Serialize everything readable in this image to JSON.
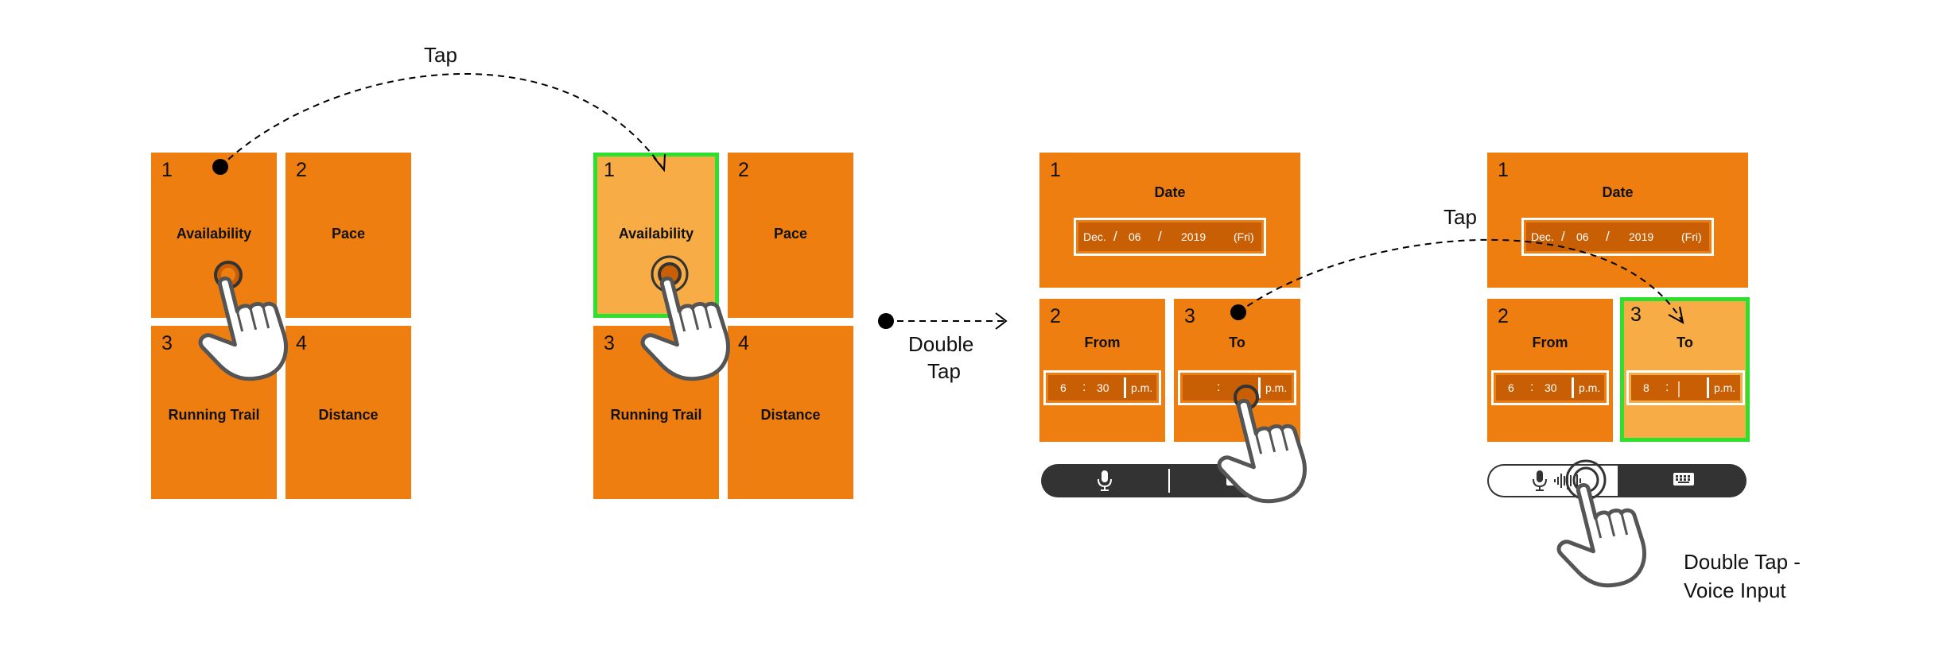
{
  "panel1": {
    "tiles": [
      {
        "num": "1",
        "label": "Availability"
      },
      {
        "num": "2",
        "label": "Pace"
      },
      {
        "num": "3",
        "label": "Running Trail"
      },
      {
        "num": "4",
        "label": "Distance"
      }
    ]
  },
  "panel2": {
    "tiles": [
      {
        "num": "1",
        "label": "Availability"
      },
      {
        "num": "2",
        "label": "Pace"
      },
      {
        "num": "3",
        "label": "Running Trail"
      },
      {
        "num": "4",
        "label": "Distance"
      }
    ]
  },
  "panel3": {
    "date_num": "1",
    "date_label": "Date",
    "date_field": {
      "month": "Dec.",
      "sep1": "/",
      "day": "06",
      "sep2": "/",
      "year": "2019",
      "weekday": "(Fri)"
    },
    "from_num": "2",
    "from_label": "From",
    "from_field": {
      "hour": "6",
      "colon": ":",
      "minute": "30",
      "ampm": "p.m."
    },
    "to_num": "3",
    "to_label": "To",
    "to_field": {
      "hour": "",
      "colon": ":",
      "minute": "",
      "ampm": "p.m."
    }
  },
  "panel4": {
    "date_num": "1",
    "date_label": "Date",
    "date_field": {
      "month": "Dec.",
      "sep1": "/",
      "day": "06",
      "sep2": "/",
      "year": "2019",
      "weekday": "(Fri)"
    },
    "from_num": "2",
    "from_label": "From",
    "from_field": {
      "hour": "6",
      "colon": ":",
      "minute": "30",
      "ampm": "p.m."
    },
    "to_num": "3",
    "to_label": "To",
    "to_field": {
      "hour": "8",
      "colon": ":",
      "minute": "",
      "ampm": "p.m."
    }
  },
  "captions": {
    "tap_1": "Tap",
    "double_tap_1": "Double",
    "double_tap_2": "Tap",
    "tap_2": "Tap",
    "voice_1": "Double Tap -",
    "voice_2": "Voice Input"
  },
  "icons": [
    "hand-pointer-icon",
    "microphone-icon",
    "keyboard-icon",
    "sound-wave-icon"
  ],
  "colors": {
    "tile": "#EF7E10",
    "tile_selected": "#F7AC46",
    "highlight": "#2EE02E",
    "field": "#C95F05",
    "bar": "#333333"
  }
}
